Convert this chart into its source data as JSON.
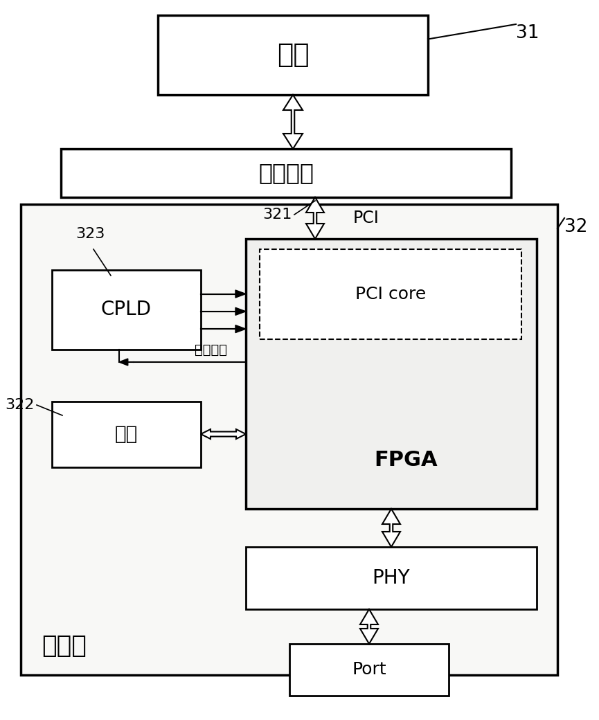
{
  "bg_color": "#ffffff",
  "title": "",
  "mainboard_label": "主板",
  "connector_label": "连接器件",
  "interface_card_label": "接口卡",
  "fpga_label": "FPGA",
  "pci_core_label": "PCI core",
  "cpld_label": "CPLD",
  "flash_label": "闪存",
  "phy_label": "PHY",
  "port_label": "Port",
  "label_31": "31",
  "label_32": "32",
  "label_321": "321",
  "label_322": "322",
  "label_323": "323",
  "pci_label": "PCI",
  "qidong_label": "启动信号"
}
